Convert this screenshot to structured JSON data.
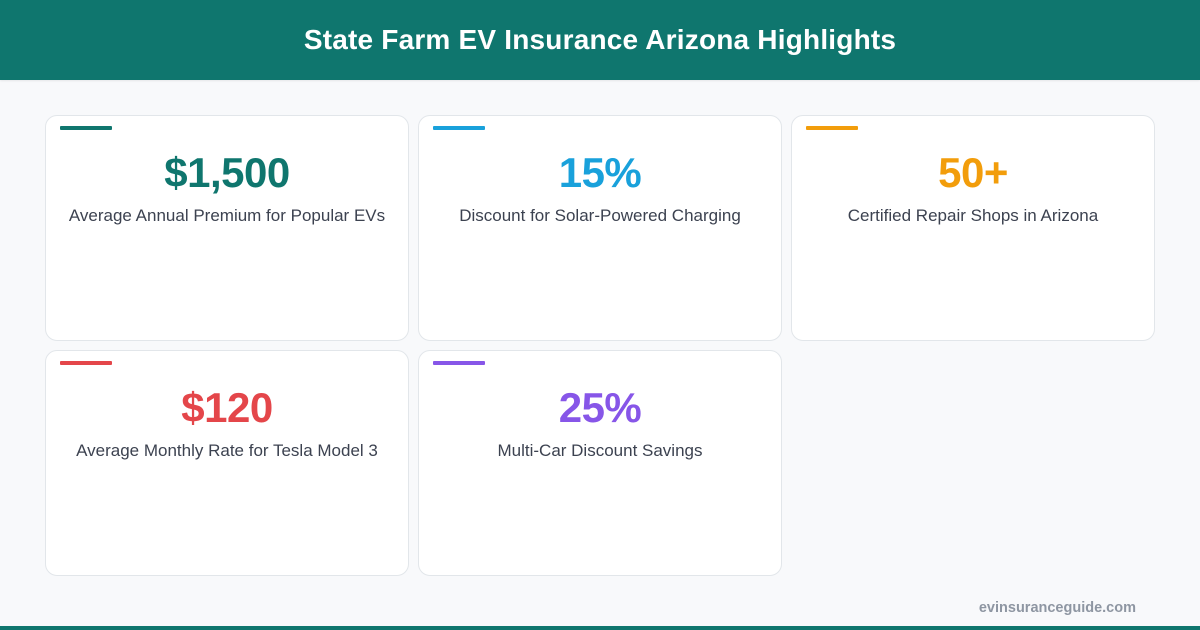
{
  "header": {
    "title": "State Farm EV Insurance Arizona Highlights",
    "background": "#0f766e"
  },
  "cards": [
    {
      "value": "$1,500",
      "label": "Average Annual Premium for Popular EVs",
      "color": "#0f766e"
    },
    {
      "value": "15%",
      "label": "Discount for Solar-Powered Charging",
      "color": "#19a1db"
    },
    {
      "value": "50+",
      "label": "Certified Repair Shops in Arizona",
      "color": "#f29d0b"
    },
    {
      "value": "$120",
      "label": "Average Monthly Rate for Tesla Model 3",
      "color": "#e4464a"
    },
    {
      "value": "25%",
      "label": "Multi-Car Discount Savings",
      "color": "#8756e8"
    }
  ],
  "footer": {
    "site": "evinsuranceguide.com"
  }
}
